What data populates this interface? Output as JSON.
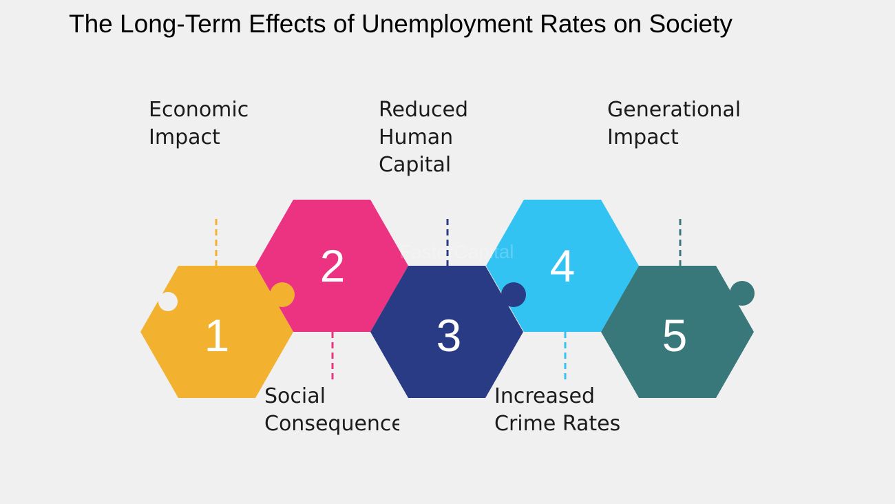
{
  "title": "The Long-Term Effects of Unemployment Rates on Society",
  "watermark": "FasterCapital",
  "steps": [
    {
      "number": "1",
      "label_lines": [
        "Economic",
        "Impact"
      ],
      "color": "#f2b230",
      "position": "top"
    },
    {
      "number": "2",
      "label_lines": [
        "Social",
        "Consequences"
      ],
      "color": "#ec3381",
      "position": "bottom"
    },
    {
      "number": "3",
      "label_lines": [
        "Reduced",
        "Human",
        "Capital"
      ],
      "color": "#2a3b86",
      "position": "top"
    },
    {
      "number": "4",
      "label_lines": [
        "Increased",
        "Crime Rates"
      ],
      "color": "#33c3f2",
      "position": "bottom"
    },
    {
      "number": "5",
      "label_lines": [
        "Generational",
        "Impact"
      ],
      "color": "#38787a",
      "position": "top"
    }
  ]
}
